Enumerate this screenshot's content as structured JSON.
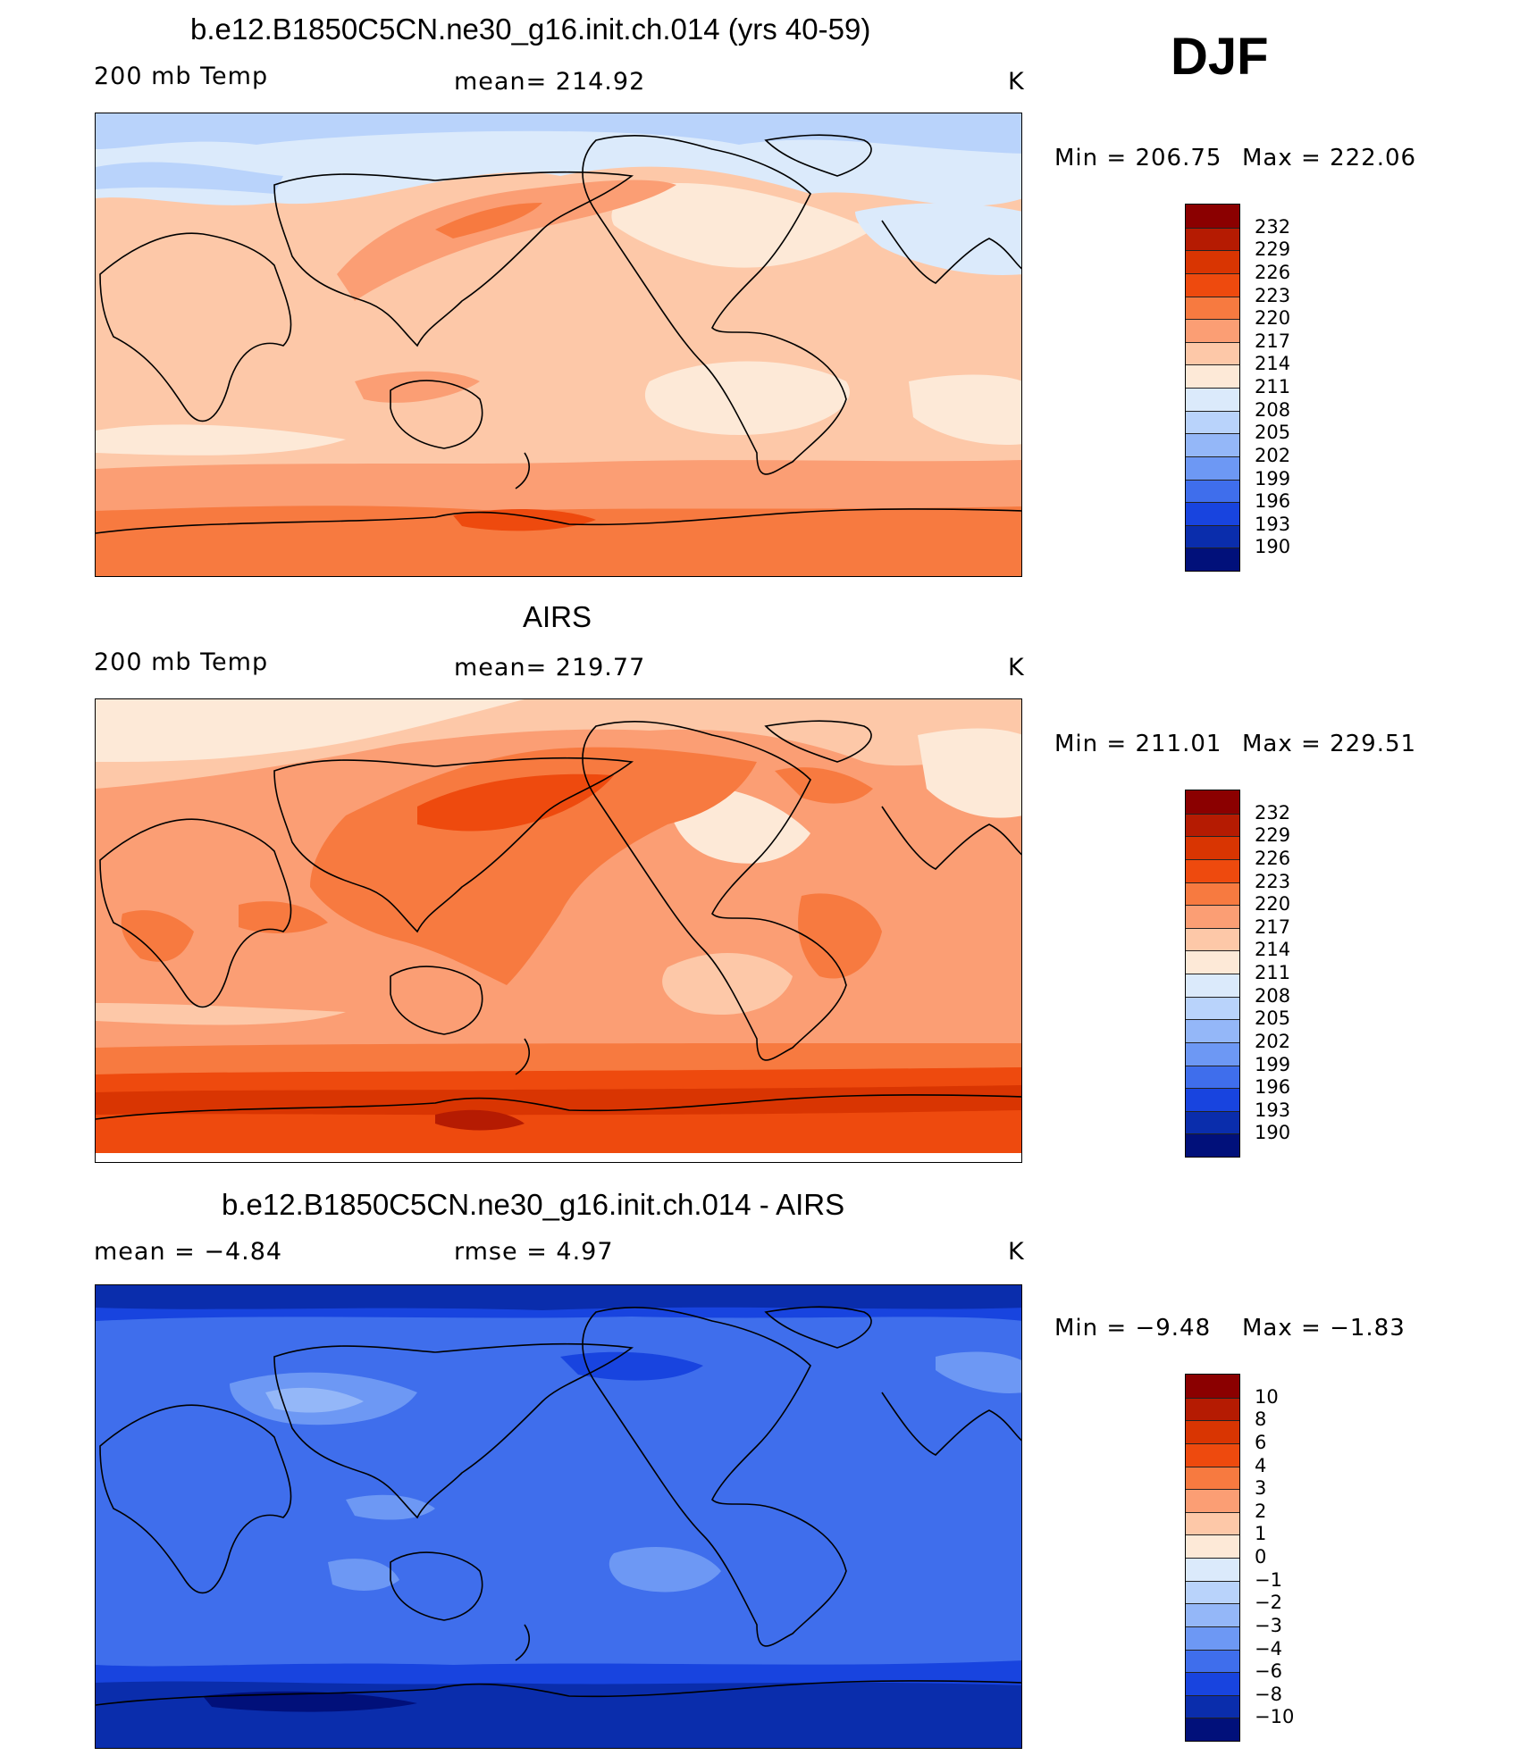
{
  "season": "DJF",
  "units": "K",
  "panels": [
    {
      "id": "model",
      "title": "b.e12.B1850C5CN.ne30_g16.init.ch.014 (yrs 40-59)",
      "left_label": "200 mb Temp",
      "center_label": "mean=  214.92",
      "right_label": "K",
      "min_text": "Min  =  206.75",
      "max_text": "Max  =  222.06",
      "colorbar_ticks": [
        "232",
        "229",
        "226",
        "223",
        "220",
        "217",
        "214",
        "211",
        "208",
        "205",
        "202",
        "199",
        "196",
        "193",
        "190"
      ]
    },
    {
      "id": "obs",
      "title": "AIRS",
      "left_label": "200 mb Temp",
      "center_label": "mean=  219.77",
      "right_label": "K",
      "min_text": "Min  =  211.01",
      "max_text": "Max  =  229.51",
      "colorbar_ticks": [
        "232",
        "229",
        "226",
        "223",
        "220",
        "217",
        "214",
        "211",
        "208",
        "205",
        "202",
        "199",
        "196",
        "193",
        "190"
      ]
    },
    {
      "id": "diff",
      "title": "b.e12.B1850C5CN.ne30_g16.init.ch.014 - AIRS",
      "left_label": "mean  =    −4.84",
      "center_label": "rmse  =     4.97",
      "right_label": "K",
      "min_text": "Min  =    −9.48",
      "max_text": "Max  =    −1.83",
      "colorbar_ticks": [
        "10",
        "8",
        "6",
        "4",
        "3",
        "2",
        "1",
        "0",
        "−1",
        "−2",
        "−3",
        "−4",
        "−6",
        "−8",
        "−10"
      ]
    }
  ],
  "colorbar_colors": [
    "#8b0000",
    "#b51b02",
    "#d93502",
    "#ee4a0e",
    "#f77a40",
    "#fb9e74",
    "#fdc8a8",
    "#fde9d7",
    "#dbeafb",
    "#b9d3fb",
    "#94b7f8",
    "#6d98f4",
    "#3f6eec",
    "#1844df",
    "#0a2dac",
    "#01107a"
  ]
}
